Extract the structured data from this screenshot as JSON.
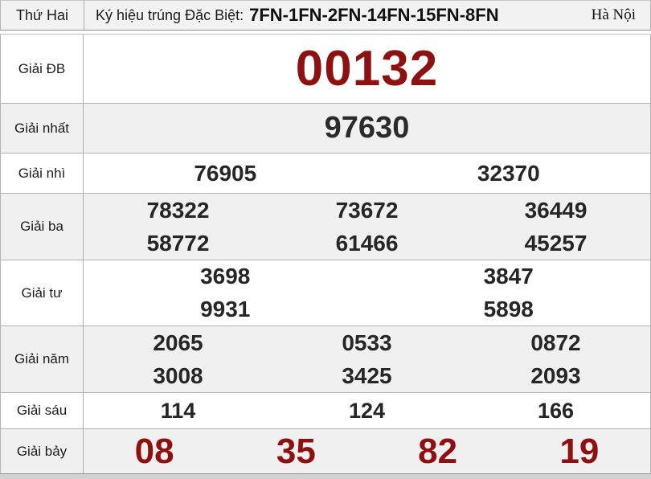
{
  "header": {
    "day": "Thứ Hai",
    "symbol_label": "Ký hiệu trúng Đặc Biệt:",
    "symbol_value": "7FN-1FN-2FN-14FN-15FN-8FN",
    "region": "Hà Nội"
  },
  "prizes": [
    {
      "name": "Giải ĐB",
      "lines": [
        [
          "00132"
        ]
      ]
    },
    {
      "name": "Giải nhất",
      "lines": [
        [
          "97630"
        ]
      ]
    },
    {
      "name": "Giải nhì",
      "lines": [
        [
          "76905",
          "32370"
        ]
      ]
    },
    {
      "name": "Giải ba",
      "lines": [
        [
          "78322",
          "73672",
          "36449"
        ],
        [
          "58772",
          "61466",
          "45257"
        ]
      ]
    },
    {
      "name": "Giải tư",
      "lines": [
        [
          "3698",
          "3847"
        ],
        [
          "9931",
          "5898"
        ]
      ]
    },
    {
      "name": "Giải năm",
      "lines": [
        [
          "2065",
          "0533",
          "0872"
        ],
        [
          "3008",
          "3425",
          "2093"
        ]
      ]
    },
    {
      "name": "Giải sáu",
      "lines": [
        [
          "114",
          "124",
          "166"
        ]
      ]
    },
    {
      "name": "Giải bảy",
      "lines": [
        [
          "08",
          "35",
          "82",
          "19"
        ]
      ]
    }
  ],
  "colors": {
    "accent_red": "#8e1111",
    "number_black": "#262626",
    "header_bg": "#f2f2f2",
    "row_alt_bg": "#f0f0f0",
    "border": "#b2b2b2",
    "bottom_strip": "#d2d2d2"
  }
}
